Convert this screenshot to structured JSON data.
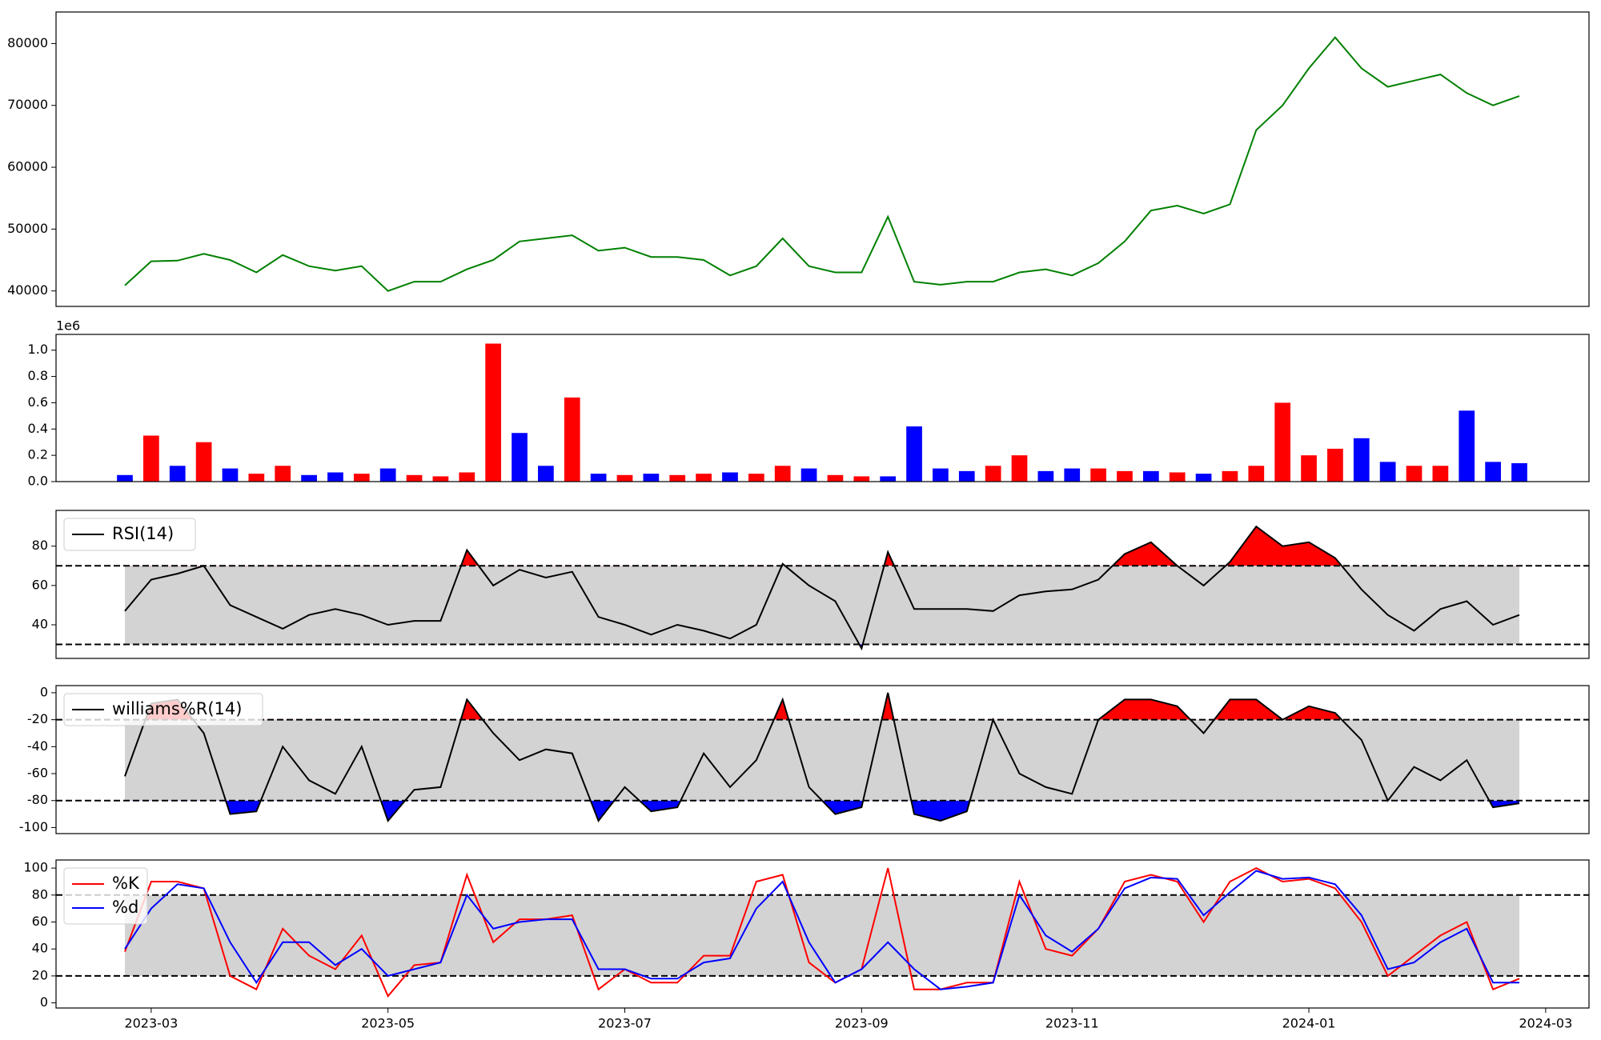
{
  "chart_data": [
    {
      "type": "line",
      "color": "#008000",
      "ylim": [
        37500,
        85100
      ],
      "yticks": [
        40000,
        50000,
        60000,
        70000,
        80000
      ],
      "values": [
        40900,
        44800,
        44900,
        46000,
        45000,
        43000,
        45800,
        44000,
        43300,
        44000,
        40000,
        41500,
        41500,
        43500,
        45000,
        48000,
        48500,
        49000,
        46500,
        47000,
        45500,
        45500,
        45000,
        42500,
        44000,
        48500,
        44000,
        43000,
        43000,
        52000,
        41500,
        41000,
        41500,
        41500,
        43000,
        43500,
        42500,
        44500,
        48000,
        53000,
        53800,
        52500,
        54000,
        66000,
        70000,
        76000,
        81000,
        76000,
        73000,
        74000,
        75000,
        72000,
        70000,
        71500,
        null
      ]
    },
    {
      "type": "bar",
      "ylim": [
        0,
        1120000
      ],
      "offset_label": "1e6",
      "yticks": [
        {
          "value": 0,
          "label": "0.0"
        },
        {
          "value": 200000,
          "label": "0.2"
        },
        {
          "value": 400000,
          "label": "0.4"
        },
        {
          "value": 600000,
          "label": "0.6"
        },
        {
          "value": 800000,
          "label": "0.8"
        },
        {
          "value": 1000000,
          "label": "1.0"
        }
      ],
      "values": [
        50000,
        350000,
        120000,
        300000,
        100000,
        60000,
        120000,
        50000,
        70000,
        60000,
        100000,
        50000,
        40000,
        70000,
        1050000,
        370000,
        120000,
        640000,
        60000,
        50000,
        60000,
        50000,
        60000,
        70000,
        60000,
        120000,
        100000,
        50000,
        40000,
        40000,
        420000,
        100000,
        80000,
        120000,
        200000,
        80000,
        100000,
        100000,
        80000,
        80000,
        70000,
        60000,
        80000,
        120000,
        600000,
        200000,
        250000,
        330000,
        150000,
        120000,
        120000,
        540000,
        150000,
        140000,
        null
      ],
      "colors": [
        "#0000ff",
        "#ff0000",
        "#0000ff",
        "#ff0000",
        "#0000ff",
        "#ff0000",
        "#ff0000",
        "#0000ff",
        "#0000ff",
        "#ff0000",
        "#0000ff",
        "#ff0000",
        "#ff0000",
        "#ff0000",
        "#ff0000",
        "#0000ff",
        "#0000ff",
        "#ff0000",
        "#0000ff",
        "#ff0000",
        "#0000ff",
        "#ff0000",
        "#ff0000",
        "#0000ff",
        "#ff0000",
        "#ff0000",
        "#0000ff",
        "#ff0000",
        "#ff0000",
        "#0000ff",
        "#0000ff",
        "#0000ff",
        "#0000ff",
        "#ff0000",
        "#ff0000",
        "#0000ff",
        "#0000ff",
        "#ff0000",
        "#ff0000",
        "#0000ff",
        "#ff0000",
        "#0000ff",
        "#ff0000",
        "#ff0000",
        "#ff0000",
        "#ff0000",
        "#ff0000",
        "#0000ff",
        "#0000ff",
        "#ff0000",
        "#ff0000",
        "#0000ff",
        "#0000ff",
        "#0000ff",
        null
      ]
    },
    {
      "type": "line",
      "ylim": [
        22.9,
        98.2
      ],
      "yticks": [
        40,
        60,
        80
      ],
      "hlines": [
        70,
        30
      ],
      "band_color": "#d3d3d3",
      "above_color": "#ff0000",
      "below_color": "#0000ff",
      "legend": "upper left",
      "series": [
        {
          "name": "RSI(14)",
          "color": "#000000",
          "values": [
            47,
            63,
            66,
            70,
            50,
            44,
            38,
            45,
            48,
            45,
            40,
            42,
            42,
            78,
            60,
            68,
            64,
            67,
            44,
            40,
            35,
            40,
            37,
            33,
            40,
            71,
            60,
            52,
            28,
            77,
            48,
            48,
            48,
            47,
            55,
            57,
            58,
            63,
            76,
            82,
            70,
            60,
            72,
            90,
            80,
            82,
            74,
            58,
            45,
            37,
            48,
            52,
            40,
            45,
            null
          ]
        }
      ]
    },
    {
      "type": "line",
      "ylim": [
        -104.5,
        5.3
      ],
      "yticks": [
        -100,
        -80,
        -60,
        -40,
        -20,
        0
      ],
      "hlines": [
        -20,
        -80
      ],
      "band_color": "#d3d3d3",
      "above_color": "#ff0000",
      "below_color": "#0000ff",
      "legend": "upper left",
      "series": [
        {
          "name": "williams%R(14)",
          "color": "#000000",
          "values": [
            -62,
            -8,
            -5,
            -30,
            -90,
            -88,
            -40,
            -65,
            -75,
            -40,
            -95,
            -72,
            -70,
            -5,
            -30,
            -50,
            -42,
            -45,
            -95,
            -70,
            -88,
            -85,
            -45,
            -70,
            -50,
            -5,
            -70,
            -90,
            -85,
            0,
            -90,
            -95,
            -88,
            -20,
            -60,
            -70,
            -75,
            -20,
            -5,
            -5,
            -10,
            -30,
            -5,
            -5,
            -20,
            -10,
            -15,
            -35,
            -80,
            -55,
            -65,
            -50,
            -85,
            -82,
            null
          ]
        }
      ]
    },
    {
      "type": "line",
      "ylim": [
        -3.8,
        106
      ],
      "yticks": [
        0,
        20,
        40,
        60,
        80,
        100
      ],
      "hlines": [
        80,
        20
      ],
      "band_color": "#d3d3d3",
      "legend": "upper left",
      "categories": [
        null,
        "2023-03",
        null,
        null,
        null,
        null,
        null,
        null,
        null,
        null,
        "2023-05",
        null,
        null,
        null,
        null,
        null,
        null,
        null,
        null,
        "2023-07",
        null,
        null,
        null,
        null,
        null,
        null,
        null,
        null,
        "2023-09",
        null,
        null,
        null,
        null,
        null,
        null,
        null,
        "2023-11",
        null,
        null,
        null,
        null,
        null,
        null,
        null,
        null,
        "2024-01",
        null,
        null,
        null,
        null,
        null,
        null,
        null,
        null,
        "2024-03"
      ],
      "series": [
        {
          "name": "%K",
          "color": "#ff0000",
          "values": [
            38,
            90,
            90,
            85,
            20,
            10,
            55,
            35,
            25,
            50,
            5,
            28,
            30,
            95,
            45,
            62,
            62,
            65,
            10,
            25,
            15,
            15,
            35,
            35,
            90,
            95,
            30,
            15,
            25,
            100,
            10,
            10,
            15,
            15,
            90,
            40,
            35,
            55,
            90,
            95,
            90,
            60,
            90,
            100,
            90,
            92,
            85,
            60,
            20,
            35,
            50,
            60,
            10,
            18,
            null
          ]
        },
        {
          "name": "%d",
          "color": "#0000ff",
          "values": [
            40,
            70,
            88,
            85,
            45,
            15,
            45,
            45,
            28,
            40,
            20,
            25,
            30,
            80,
            55,
            60,
            62,
            62,
            25,
            25,
            18,
            18,
            30,
            33,
            70,
            90,
            45,
            15,
            25,
            45,
            25,
            10,
            12,
            15,
            80,
            50,
            38,
            55,
            85,
            93,
            92,
            65,
            82,
            98,
            92,
            93,
            88,
            65,
            25,
            30,
            45,
            55,
            15,
            15,
            null
          ]
        }
      ]
    }
  ]
}
